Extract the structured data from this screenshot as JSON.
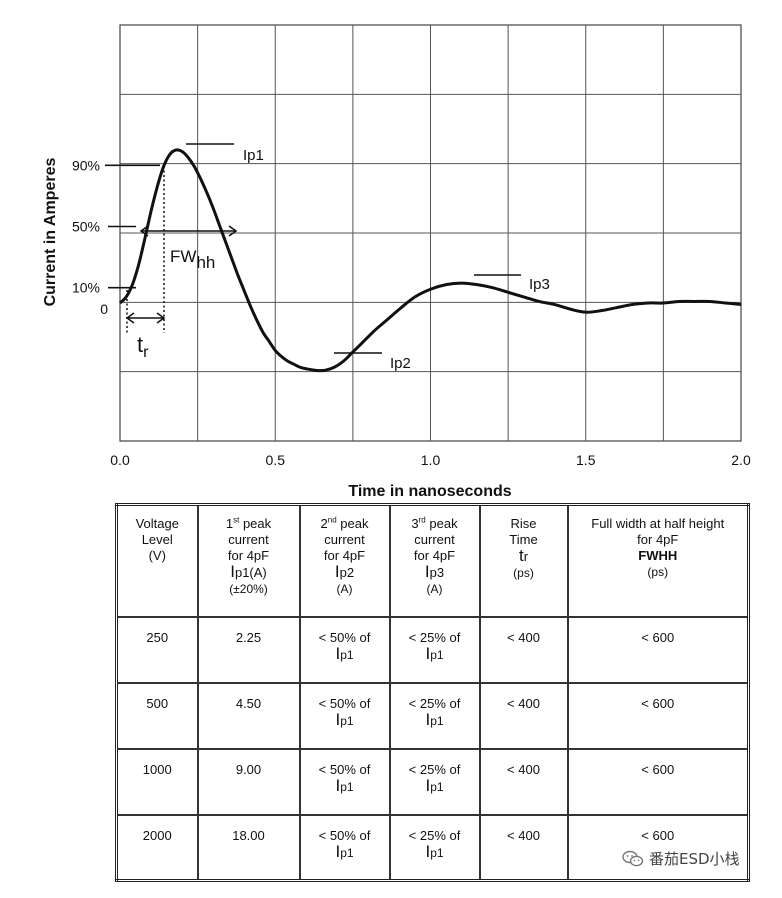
{
  "chart_data": {
    "type": "line",
    "xlabel": "Time in nanoseconds",
    "ylabel": "Current in Amperes",
    "xlim": [
      0.0,
      2.0
    ],
    "x_ticks": [
      "0.0",
      "0.5",
      "1.0",
      "1.5",
      "2.0"
    ],
    "y_tick_labels": [
      "0",
      "10%",
      "50%",
      "90%"
    ],
    "y_levels": [
      0,
      0.1,
      0.5,
      0.9
    ],
    "grid": true,
    "series": [
      {
        "x": [
          0.0,
          0.02,
          0.04,
          0.06,
          0.08,
          0.1,
          0.12,
          0.14,
          0.16,
          0.18,
          0.2,
          0.22,
          0.24,
          0.26,
          0.28,
          0.3,
          0.32,
          0.34,
          0.36,
          0.38,
          0.4,
          0.42,
          0.44,
          0.46,
          0.48,
          0.5,
          0.52,
          0.54,
          0.56,
          0.58,
          0.6,
          0.63,
          0.66,
          0.69,
          0.72,
          0.75,
          0.78,
          0.82,
          0.86,
          0.9,
          0.95,
          1.0,
          1.05,
          1.1,
          1.15,
          1.2,
          1.25,
          1.3,
          1.35,
          1.4,
          1.45,
          1.5,
          1.55,
          1.6,
          1.65,
          1.7,
          1.75,
          1.8,
          1.85,
          1.9,
          1.95,
          2.0
        ],
        "y": [
          0.0,
          0.04,
          0.12,
          0.25,
          0.42,
          0.6,
          0.76,
          0.89,
          0.97,
          1.0,
          0.99,
          0.95,
          0.89,
          0.81,
          0.72,
          0.62,
          0.51,
          0.4,
          0.29,
          0.18,
          0.08,
          -0.02,
          -0.11,
          -0.19,
          -0.25,
          -0.31,
          -0.35,
          -0.38,
          -0.4,
          -0.42,
          -0.43,
          -0.44,
          -0.44,
          -0.42,
          -0.38,
          -0.32,
          -0.26,
          -0.18,
          -0.11,
          -0.04,
          0.04,
          0.09,
          0.12,
          0.13,
          0.12,
          0.1,
          0.07,
          0.04,
          0.01,
          -0.01,
          -0.04,
          -0.06,
          -0.05,
          -0.03,
          -0.01,
          0.0,
          0.0,
          0.01,
          0.01,
          0.01,
          0.0,
          -0.01
        ]
      }
    ],
    "annotations": {
      "ip1": "Ip1",
      "ip2": "Ip2",
      "ip3": "Ip3",
      "fwhh_main": "FW",
      "fwhh_sub": "hh",
      "tr_main": "t",
      "tr_sub": "r"
    }
  },
  "table": {
    "headers": {
      "voltage": {
        "line1": "Voltage",
        "line2": "Level",
        "unit": "(V)"
      },
      "ip1": {
        "ordinal": "1",
        "sup": "st",
        "rest": " peak",
        "line2": "current",
        "line3": "for 4pF",
        "symbol_main": "I",
        "symbol_sub": "p1(A)",
        "tolerance": "(±20%)"
      },
      "ip2": {
        "ordinal": "2",
        "sup": "nd",
        "rest": " peak",
        "line2": "current",
        "line3": "for 4pF",
        "symbol_main": "I",
        "symbol_sub": "p2",
        "unit": "(A)"
      },
      "ip3": {
        "ordinal": "3",
        "sup": "rd",
        "rest": " peak",
        "line2": "current",
        "line3": "for 4pF",
        "symbol_main": "I",
        "symbol_sub": "p3",
        "unit": "(A)"
      },
      "rise": {
        "line1": "Rise",
        "line2": "Time",
        "symbol_main": "t",
        "symbol_sub": "r",
        "unit": "(ps)"
      },
      "fwhh": {
        "line1": "Full width at half height",
        "line2": "for 4pF",
        "abbr": "FWHH",
        "unit": "(ps)"
      }
    },
    "rows": [
      {
        "voltage": "250",
        "ip1": "2.25",
        "ip2_prefix": "< 50% of",
        "ip2_main": "I",
        "ip2_sub": "p1",
        "ip3_prefix": "< 25% of",
        "ip3_main": "I",
        "ip3_sub": "p1",
        "rise": "< 400",
        "fwhh": "< 600"
      },
      {
        "voltage": "500",
        "ip1": "4.50",
        "ip2_prefix": "< 50% of",
        "ip2_main": "I",
        "ip2_sub": "p1",
        "ip3_prefix": "< 25% of",
        "ip3_main": "I",
        "ip3_sub": "p1",
        "rise": "< 400",
        "fwhh": "< 600"
      },
      {
        "voltage": "1000",
        "ip1": "9.00",
        "ip2_prefix": "< 50% of",
        "ip2_main": "I",
        "ip2_sub": "p1",
        "ip3_prefix": "< 25% of",
        "ip3_main": "I",
        "ip3_sub": "p1",
        "rise": "< 400",
        "fwhh": "< 600"
      },
      {
        "voltage": "2000",
        "ip1": "18.00",
        "ip2_prefix": "< 50% of",
        "ip2_main": "I",
        "ip2_sub": "p1",
        "ip3_prefix": "< 25% of",
        "ip3_main": "I",
        "ip3_sub": "p1",
        "rise": "< 400",
        "fwhh": "< 600"
      }
    ]
  },
  "watermark": {
    "text": "番茄ESD小栈",
    "icon": "wechat-icon"
  }
}
